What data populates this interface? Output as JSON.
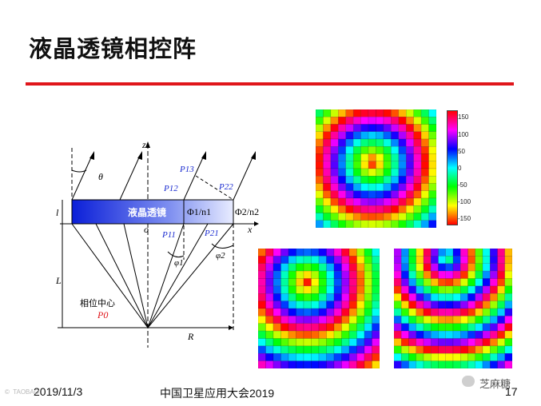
{
  "slide": {
    "title": "液晶透镜相控阵",
    "date": "2019/11/3",
    "conference": "中国卫星应用大会2019",
    "page_number": "17",
    "watermark_left": "©  TAOBAO",
    "watermark_right": "芝麻糖"
  },
  "diagram": {
    "lens_label": "液晶透镜",
    "phase_ratio_1": "Φ1/n1",
    "phase_ratio_2": "Φ2/n2",
    "axis_z": "z",
    "axis_x": "x",
    "origin": "o",
    "theta": "θ",
    "thickness": "l",
    "height": "L",
    "radius": "R",
    "phase_center": "相位中心",
    "p0": "P0",
    "p11": "P11",
    "p12": "P12",
    "p13": "P13",
    "p21": "P21",
    "p22": "P22",
    "phi1": "φ1",
    "phi2": "φ2"
  },
  "colorbar": {
    "ticks": [
      "150",
      "100",
      "50",
      "0",
      "-50",
      "-100",
      "-150"
    ],
    "colors": [
      "#ff0000",
      "#ff00ff",
      "#0000ff",
      "#00ffff",
      "#00ff00",
      "#ffff00",
      "#ff0000"
    ]
  },
  "heatmaps": [
    {
      "name": "heatmap-top-right",
      "grid": 16,
      "center_col": 0.47,
      "center_row": 0.45,
      "rings": 2.3,
      "offset": 0.0
    },
    {
      "name": "heatmap-bottom-left",
      "grid": 16,
      "center_col": 0.4,
      "center_row": 0.28,
      "rings": 2.4,
      "offset": 0.0
    },
    {
      "name": "heatmap-bottom-right",
      "grid": 16,
      "center_col": 0.45,
      "center_row": 0.08,
      "rings": 3.4,
      "offset": 0.35
    }
  ]
}
